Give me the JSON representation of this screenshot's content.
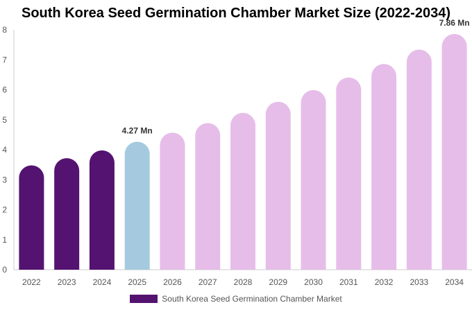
{
  "chart_data": {
    "type": "bar",
    "title": "South Korea Seed Germination Chamber Market Size (2022-2034)",
    "categories": [
      "2022",
      "2023",
      "2024",
      "2025",
      "2026",
      "2027",
      "2028",
      "2029",
      "2030",
      "2031",
      "2032",
      "2033",
      "2034"
    ],
    "series": [
      {
        "name": "South Korea Seed Germination Chamber Market",
        "values": [
          3.48,
          3.72,
          3.98,
          4.27,
          4.57,
          4.89,
          5.23,
          5.6,
          5.99,
          6.41,
          6.86,
          7.34,
          7.86
        ]
      }
    ],
    "data_labels": [
      {
        "index": 3,
        "text": "4.27 Mn"
      },
      {
        "index": 12,
        "text": "7.86 Mn"
      }
    ],
    "ylim": [
      0,
      8
    ],
    "yticks": [
      0,
      1,
      2,
      3,
      4,
      5,
      6,
      7,
      8
    ],
    "xlabel": "",
    "ylabel": "",
    "grid": false,
    "legend_position": "bottom",
    "colors": {
      "historical": "#541370",
      "current": "#a5cadf",
      "forecast": "#e6bde9",
      "axis": "#cccccc",
      "tick_text": "#555555",
      "label_text": "#333333"
    }
  },
  "legend": {
    "label": "South Korea Seed Germination Chamber Market",
    "color": "#541370"
  }
}
